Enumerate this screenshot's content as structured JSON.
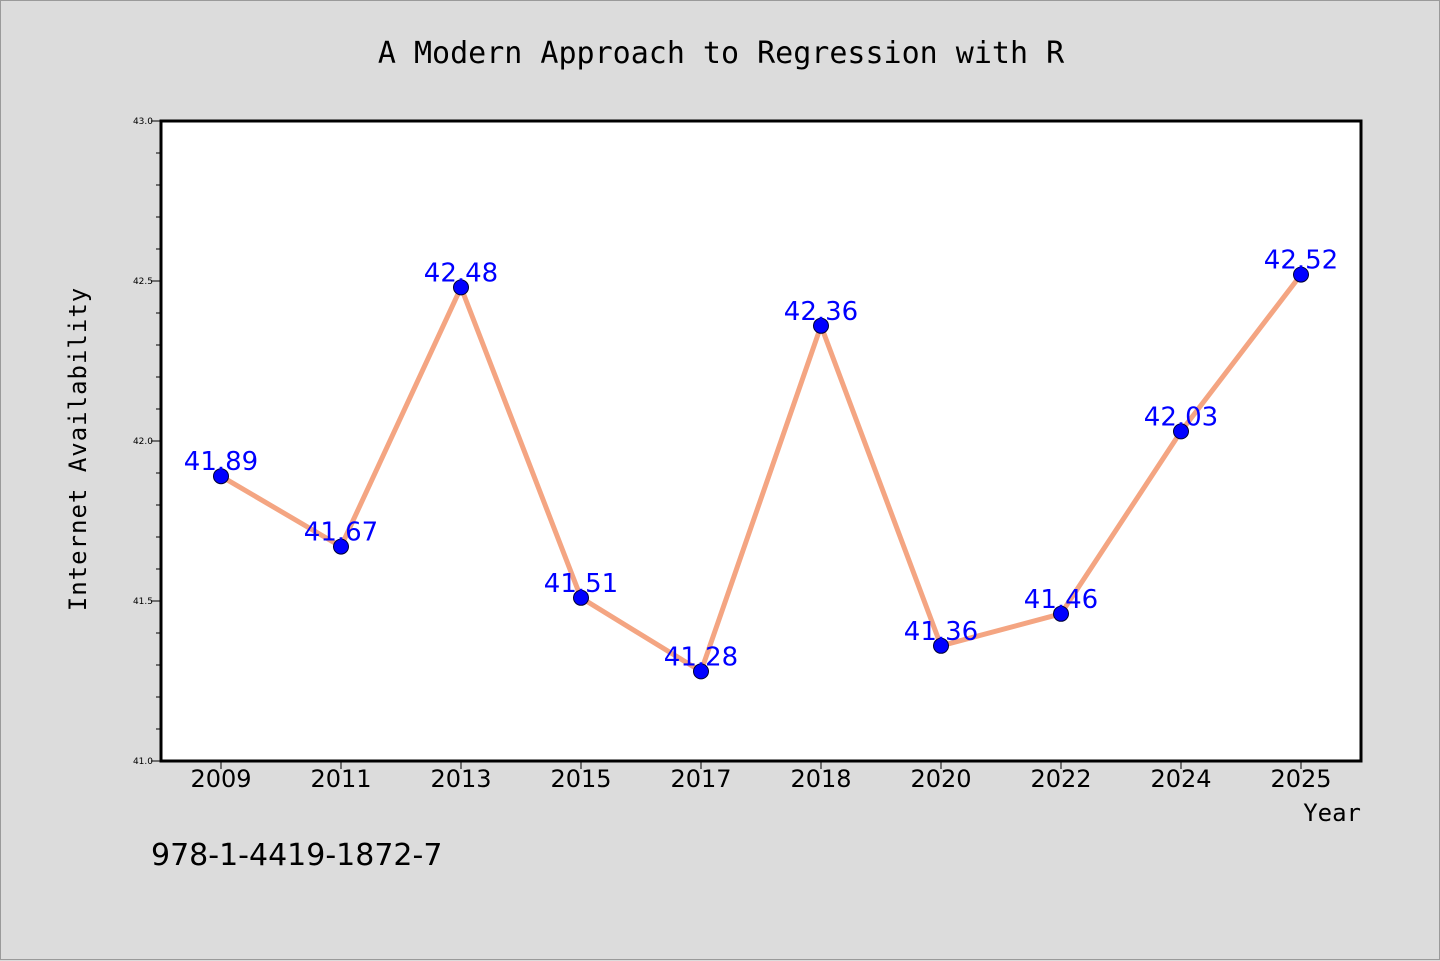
{
  "chart_data": {
    "type": "line",
    "title": "A Modern Approach to Regression with R",
    "xlabel": "Year",
    "ylabel": "Internet Availability",
    "categories": [
      "2009",
      "2011",
      "2013",
      "2015",
      "2017",
      "2018",
      "2020",
      "2022",
      "2024",
      "2025"
    ],
    "series": [
      {
        "values": [
          41.89,
          41.67,
          42.48,
          41.51,
          41.28,
          42.36,
          41.36,
          41.46,
          42.03,
          42.52
        ]
      }
    ],
    "data_labels": [
      "41.89",
      "41.67",
      "42.48",
      "41.51",
      "41.28",
      "42.36",
      "41.36",
      "41.46",
      "42.03",
      "42.52"
    ],
    "ylim": [
      41.0,
      43.0
    ],
    "yticks": [
      "41.0",
      "41.5",
      "42.0",
      "42.5",
      "43.0"
    ],
    "grid": false,
    "legend": "none",
    "colors": {
      "line": "#f4a582",
      "marker": "#0000ff",
      "data_label": "#0000ff",
      "background": "#dcdcdc",
      "plot_area": "#ffffff"
    }
  },
  "annotation": {
    "isbn": "978-1-4419-1872-7"
  }
}
